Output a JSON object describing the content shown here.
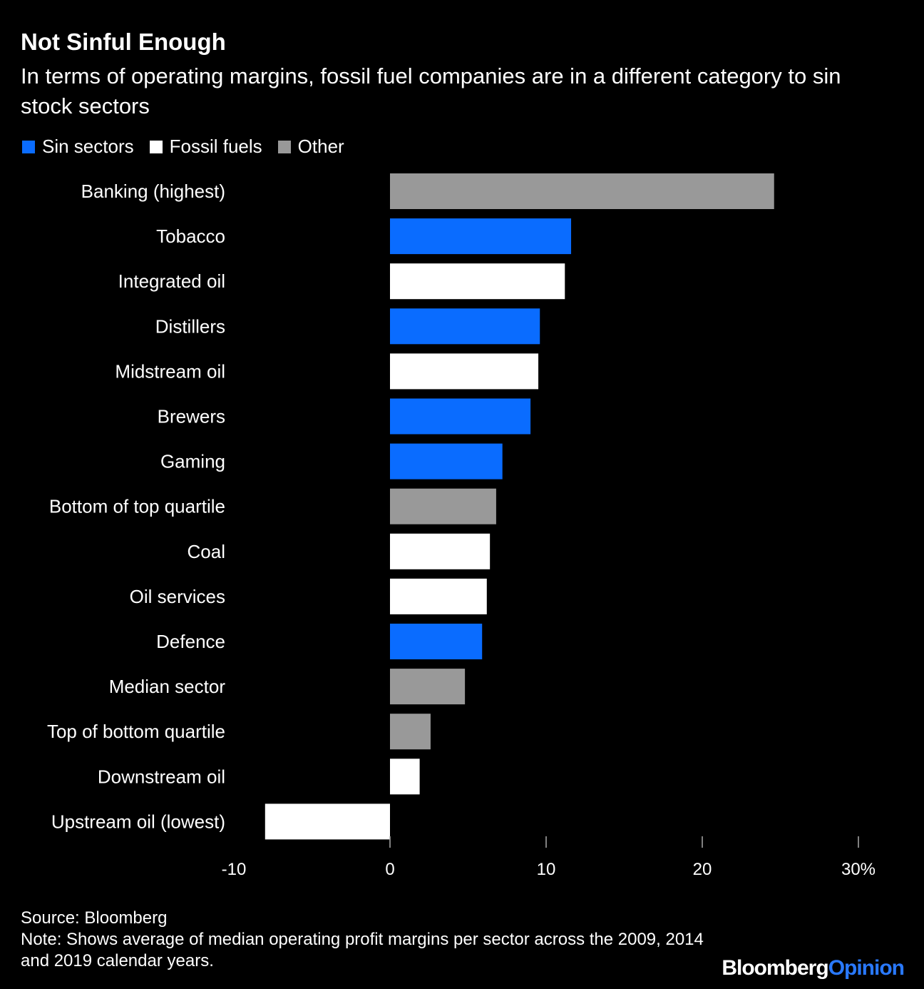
{
  "header": {
    "title": "Not Sinful Enough",
    "subtitle": "In terms of operating margins, fossil fuel companies are in a different category to sin stock sectors"
  },
  "legend": [
    {
      "label": "Sin sectors",
      "color": "#0a6cff"
    },
    {
      "label": "Fossil fuels",
      "color": "#ffffff"
    },
    {
      "label": "Other",
      "color": "#999999"
    }
  ],
  "chart_data": {
    "type": "bar",
    "orientation": "horizontal",
    "categories": [
      "Banking (highest)",
      "Tobacco",
      "Integrated oil",
      "Distillers",
      "Midstream oil",
      "Brewers",
      "Gaming",
      "Bottom of top quartile",
      "Coal",
      "Oil services",
      "Defence",
      "Median sector",
      "Top of bottom quartile",
      "Downstream oil",
      "Upstream oil (lowest)"
    ],
    "values": [
      24.6,
      11.6,
      11.2,
      9.6,
      9.5,
      9.0,
      7.2,
      6.8,
      6.4,
      6.2,
      5.9,
      4.8,
      2.6,
      1.9,
      -8.0
    ],
    "groups": [
      "Other",
      "Sin sectors",
      "Fossil fuels",
      "Sin sectors",
      "Fossil fuels",
      "Sin sectors",
      "Sin sectors",
      "Other",
      "Fossil fuels",
      "Fossil fuels",
      "Sin sectors",
      "Other",
      "Other",
      "Fossil fuels",
      "Fossil fuels"
    ],
    "xlim": [
      -10,
      30
    ],
    "xticks": [
      -10,
      0,
      10,
      20,
      30
    ],
    "xtick_labels": [
      "-10",
      "0",
      "10",
      "20",
      "30%"
    ],
    "grid": false,
    "legend_position": "top-left"
  },
  "footer": {
    "source": "Source: Bloomberg",
    "note": "Note: Shows average of median operating profit margins per sector across the 2009, 2014 and 2019 calendar years."
  },
  "brand": {
    "part1": "Bloomberg",
    "part2": "Opinion"
  }
}
